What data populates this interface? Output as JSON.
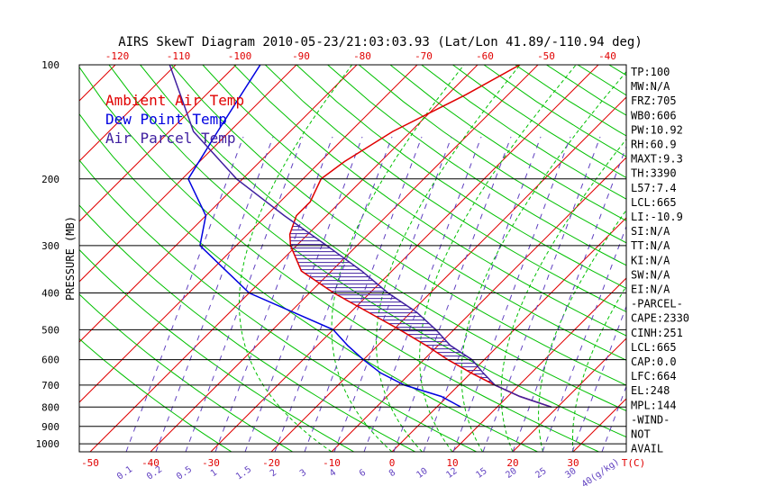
{
  "chart_data": {
    "type": "line",
    "title": "AIRS SkewT Diagram 2010-05-23/21:03:03.93 (Lat/Lon 41.89/-110.94 deg)",
    "ylabel": "PRESSURE (MB)",
    "top_axis_labels": [
      "-120",
      "-110",
      "-100",
      "-90",
      "-80",
      "-70",
      "-60",
      "-50",
      "-40"
    ],
    "bottom_temp_labels": [
      "-50",
      "-40",
      "-30",
      "-20",
      "-10",
      "0",
      "10",
      "20",
      "30",
      "T(C)"
    ],
    "bottom_mixing_labels": [
      "0.1",
      "0.2",
      "0.5",
      "1",
      "1.5",
      "2",
      "3",
      "4",
      "6",
      "8",
      "10",
      "12",
      "15",
      "20",
      "25",
      "30",
      "40(g/kg)"
    ],
    "pressure_labels": [
      "100",
      "200",
      "300",
      "400",
      "500",
      "600",
      "700",
      "800",
      "900",
      "1000"
    ],
    "legend": [
      {
        "name": "Ambient Air Temp",
        "color": "#e00000"
      },
      {
        "name": "Dew Point Temp",
        "color": "#0000e0"
      },
      {
        "name": "Air Parcel Temp",
        "color": "#4020a0"
      }
    ],
    "info_lines": [
      "TP:100",
      "MW:N/A",
      "FRZ:705",
      "WB0:606",
      "PW:10.92",
      "RH:60.9",
      "MAXT:9.3",
      "TH:3390",
      "L57:7.4",
      "LCL:665",
      "LI:-10.9",
      "SI:N/A",
      "TT:N/A",
      "KI:N/A",
      "SW:N/A",
      "EI:N/A",
      "-PARCEL-",
      "CAPE:2330",
      "CINH:251",
      "LCL:665",
      "CAP:0.0",
      "LFC:664",
      "EL:248",
      "MPL:144",
      "-WIND-",
      "NOT",
      "AVAIL"
    ],
    "series": [
      {
        "name": "Ambient Air Temp",
        "color": "#e00000",
        "p": [
          100,
          120,
          150,
          180,
          200,
          230,
          250,
          280,
          300,
          350,
          400,
          450,
          500,
          550,
          600,
          650,
          700,
          750,
          800
        ],
        "t": [
          -43,
          -47,
          -53,
          -56,
          -57,
          -55,
          -55,
          -53,
          -51,
          -45,
          -36,
          -27,
          -19,
          -12,
          -6,
          0,
          6,
          12,
          19
        ]
      },
      {
        "name": "Dew Point Temp",
        "color": "#0000e0",
        "p": [
          100,
          150,
          200,
          250,
          300,
          400,
          500,
          550,
          600,
          650,
          700,
          750,
          800
        ],
        "t": [
          -86,
          -82,
          -79,
          -70,
          -66,
          -50,
          -30,
          -25,
          -20,
          -15,
          -9,
          -1,
          4
        ]
      },
      {
        "name": "Air Parcel Temp",
        "color": "#4020a0",
        "p": [
          100,
          150,
          200,
          250,
          300,
          350,
          400,
          450,
          500,
          550,
          600,
          650,
          700,
          750,
          800
        ],
        "t": [
          -101,
          -86,
          -71,
          -57,
          -45,
          -35,
          -27,
          -19,
          -13,
          -8,
          -2,
          2,
          6,
          12,
          19
        ]
      }
    ]
  }
}
